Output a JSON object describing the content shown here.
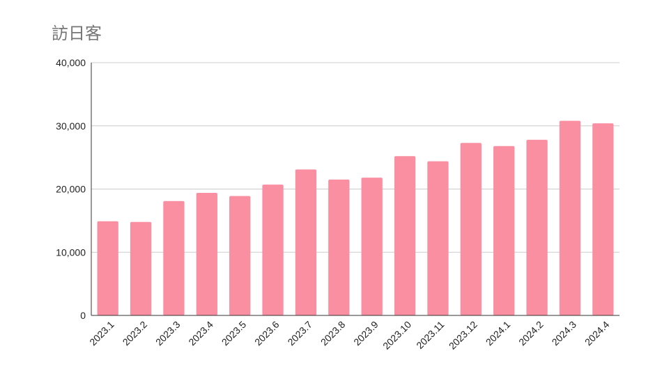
{
  "chart_data": {
    "type": "bar",
    "title": "訪日客",
    "xlabel": "",
    "ylabel": "",
    "categories": [
      "2023.1",
      "2023.2",
      "2023.3",
      "2023.4",
      "2023.5",
      "2023.6",
      "2023.7",
      "2023.8",
      "2023.9",
      "2023.10",
      "2023.11",
      "2023.12",
      "2024.1",
      "2024.2",
      "2024.3",
      "2024.4"
    ],
    "series": [
      {
        "values": [
          14900,
          14800,
          18100,
          19400,
          18900,
          20700,
          23100,
          21500,
          21800,
          25200,
          24400,
          27300,
          26800,
          27800,
          30800,
          30400
        ]
      }
    ],
    "ylim": [
      0,
      40000
    ],
    "yticks": [
      0,
      10000,
      20000,
      30000,
      40000
    ],
    "ytick_labels": [
      "0",
      "10,000",
      "20,000",
      "30,000",
      "40,000"
    ],
    "grid": true,
    "legend": "none",
    "bar_color": "#fb8fa2",
    "grid_color": "#cccccc"
  }
}
